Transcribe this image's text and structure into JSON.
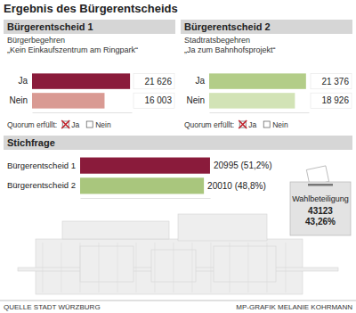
{
  "title": "Ergebnis des Bürgerentscheids",
  "chart_data": [
    {
      "type": "bar",
      "orientation": "horizontal",
      "title": "Bürgerentscheid 1",
      "subtitle": [
        "Bürgerbegehren",
        "„Kein Einkaufszentrum am Ringpark“"
      ],
      "categories": [
        "Ja",
        "Nein"
      ],
      "values": [
        21626,
        16003
      ],
      "value_labels": [
        "21 626",
        "16 003"
      ],
      "colors": [
        "#8a1b3b",
        "#d99a93"
      ],
      "xlim": [
        0,
        22000
      ],
      "data_labels": true,
      "tick_labels": "y",
      "quorum": {
        "label": "Quorum erfüllt:",
        "options": [
          {
            "label": "Ja",
            "checked": true
          },
          {
            "label": "Nein",
            "checked": false
          }
        ]
      }
    },
    {
      "type": "bar",
      "orientation": "horizontal",
      "title": "Bürgerentscheid 2",
      "subtitle": [
        "Stadtratsbegehren",
        "„Ja zum Bahnhofsprojekt“"
      ],
      "categories": [
        "Ja",
        "Nein"
      ],
      "values": [
        21376,
        18926
      ],
      "value_labels": [
        "21 376",
        "18 926"
      ],
      "colors": [
        "#b3cd88",
        "#d2e3b6"
      ],
      "xlim": [
        0,
        22000
      ],
      "data_labels": true,
      "tick_labels": "y",
      "quorum": {
        "label": "Quorum erfüllt:",
        "options": [
          {
            "label": "Ja",
            "checked": true
          },
          {
            "label": "Nein",
            "checked": false
          }
        ]
      }
    },
    {
      "type": "bar",
      "orientation": "horizontal",
      "title": "Stichfrage",
      "categories": [
        "Bürgerentscheid 1",
        "Bürgerentscheid 2"
      ],
      "values": [
        20995,
        20010
      ],
      "value_labels": [
        "20995 (51,2%)",
        "20010 (48,8%)"
      ],
      "colors": [
        "#8a1b3b",
        "#a9c67d"
      ],
      "xlim": [
        0,
        21000
      ],
      "data_labels": true,
      "tick_labels": "y"
    }
  ],
  "turnout": {
    "label": "Wahlbeteiligung",
    "lines": [
      "43123",
      "43,26%"
    ]
  },
  "source": "QUELLE STADT WÜRZBURG",
  "credit": "MP-GRAFIK MELANIE KOHRMANN"
}
